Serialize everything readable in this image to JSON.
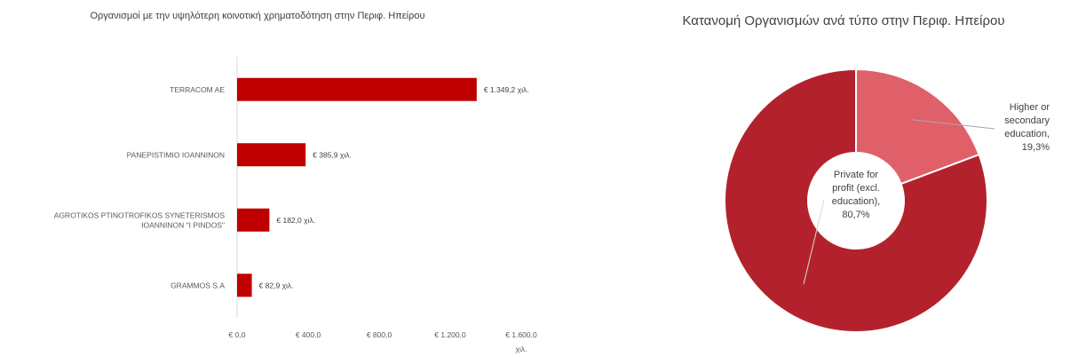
{
  "chart_data": [
    {
      "type": "bar",
      "orientation": "horizontal",
      "title": "Οργανισμοί με την υψηλότερη κοινοτική χρηματοδότηση στην Περιφ. Ηπείρου",
      "categories": [
        "TERRACOM AE",
        "PANEPISTIMIO IOANNINON",
        "AGROTIKOS PTINOTROFIKOS SYNETERISMOS IOANNINON \"I PINDOS\"",
        "GRAMMOS S.A"
      ],
      "values": [
        1349.2,
        385.9,
        182.0,
        82.9
      ],
      "data_labels": [
        "€ 1.349,2 χιλ.",
        "€ 385,9 χιλ.",
        "€ 182,0 χιλ.",
        "€ 82,9 χιλ."
      ],
      "xlim": [
        0,
        1600
      ],
      "x_ticks": [
        0,
        400,
        800,
        1200,
        1600
      ],
      "x_tick_labels": [
        "€ 0,0",
        "€ 400,0",
        "€ 800,0",
        "€ 1.200,0",
        "€ 1.600,0"
      ],
      "x_unit": "χιλ.",
      "color": "#c00000",
      "grid": false
    },
    {
      "type": "pie",
      "variant": "donut",
      "title": "Κατανομή Οργανισμών ανά τύπο στην Περιφ. Ηπείρου",
      "slices": [
        {
          "label": "Higher or secondary education",
          "value": 19.3,
          "display": "19,3%",
          "color": "#e0606a"
        },
        {
          "label": "Private for profit (excl. education)",
          "value": 80.7,
          "display": "80,7%",
          "color": "#b3222c"
        }
      ]
    }
  ]
}
